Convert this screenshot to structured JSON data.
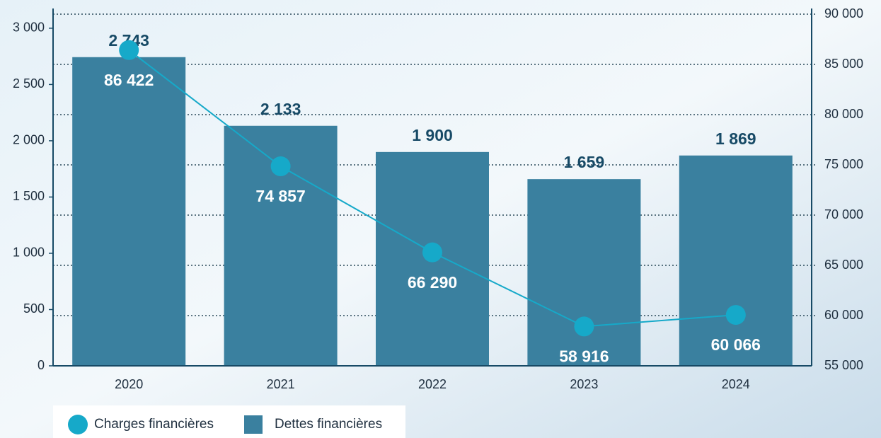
{
  "chart_data": {
    "type": "bar",
    "categories": [
      "2020",
      "2021",
      "2022",
      "2023",
      "2024"
    ],
    "series": [
      {
        "name": "Charges financières",
        "type": "line",
        "axis": "y2",
        "color": "#16a9c9",
        "values": [
          86422,
          74857,
          66290,
          58916,
          60066
        ],
        "value_labels": [
          "86 422",
          "74 857",
          "66 290",
          "58 916",
          "60 066"
        ]
      },
      {
        "name": "Dettes financières",
        "type": "bar",
        "color": "#3a809f",
        "values": [
          2743,
          2133,
          1900,
          1659,
          1869
        ],
        "value_labels": [
          "2 743",
          "2 133",
          "1 900",
          "1 659",
          "1 869"
        ]
      }
    ],
    "ylim": [
      0,
      3125
    ],
    "yticks": [
      0,
      500,
      {
        "value": 1000,
        "label": "1 000"
      },
      {
        "value": 1500,
        "label": "1 500"
      },
      {
        "value": 2000,
        "label": "2 000"
      },
      {
        "value": 2500,
        "label": "2 500"
      },
      {
        "value": 3000,
        "label": "3 000"
      }
    ],
    "y2lim": [
      55000,
      90000
    ],
    "y2ticks": [
      {
        "value": 55000,
        "label": "55 000"
      },
      {
        "value": 60000,
        "label": "60 000"
      },
      {
        "value": 65000,
        "label": "65 000"
      },
      {
        "value": 70000,
        "label": "70 000"
      },
      {
        "value": 75000,
        "label": "75 000"
      },
      {
        "value": 80000,
        "label": "80 000"
      },
      {
        "value": 85000,
        "label": "85 000"
      },
      {
        "value": 90000,
        "label": "90 000"
      }
    ],
    "grid": true
  }
}
